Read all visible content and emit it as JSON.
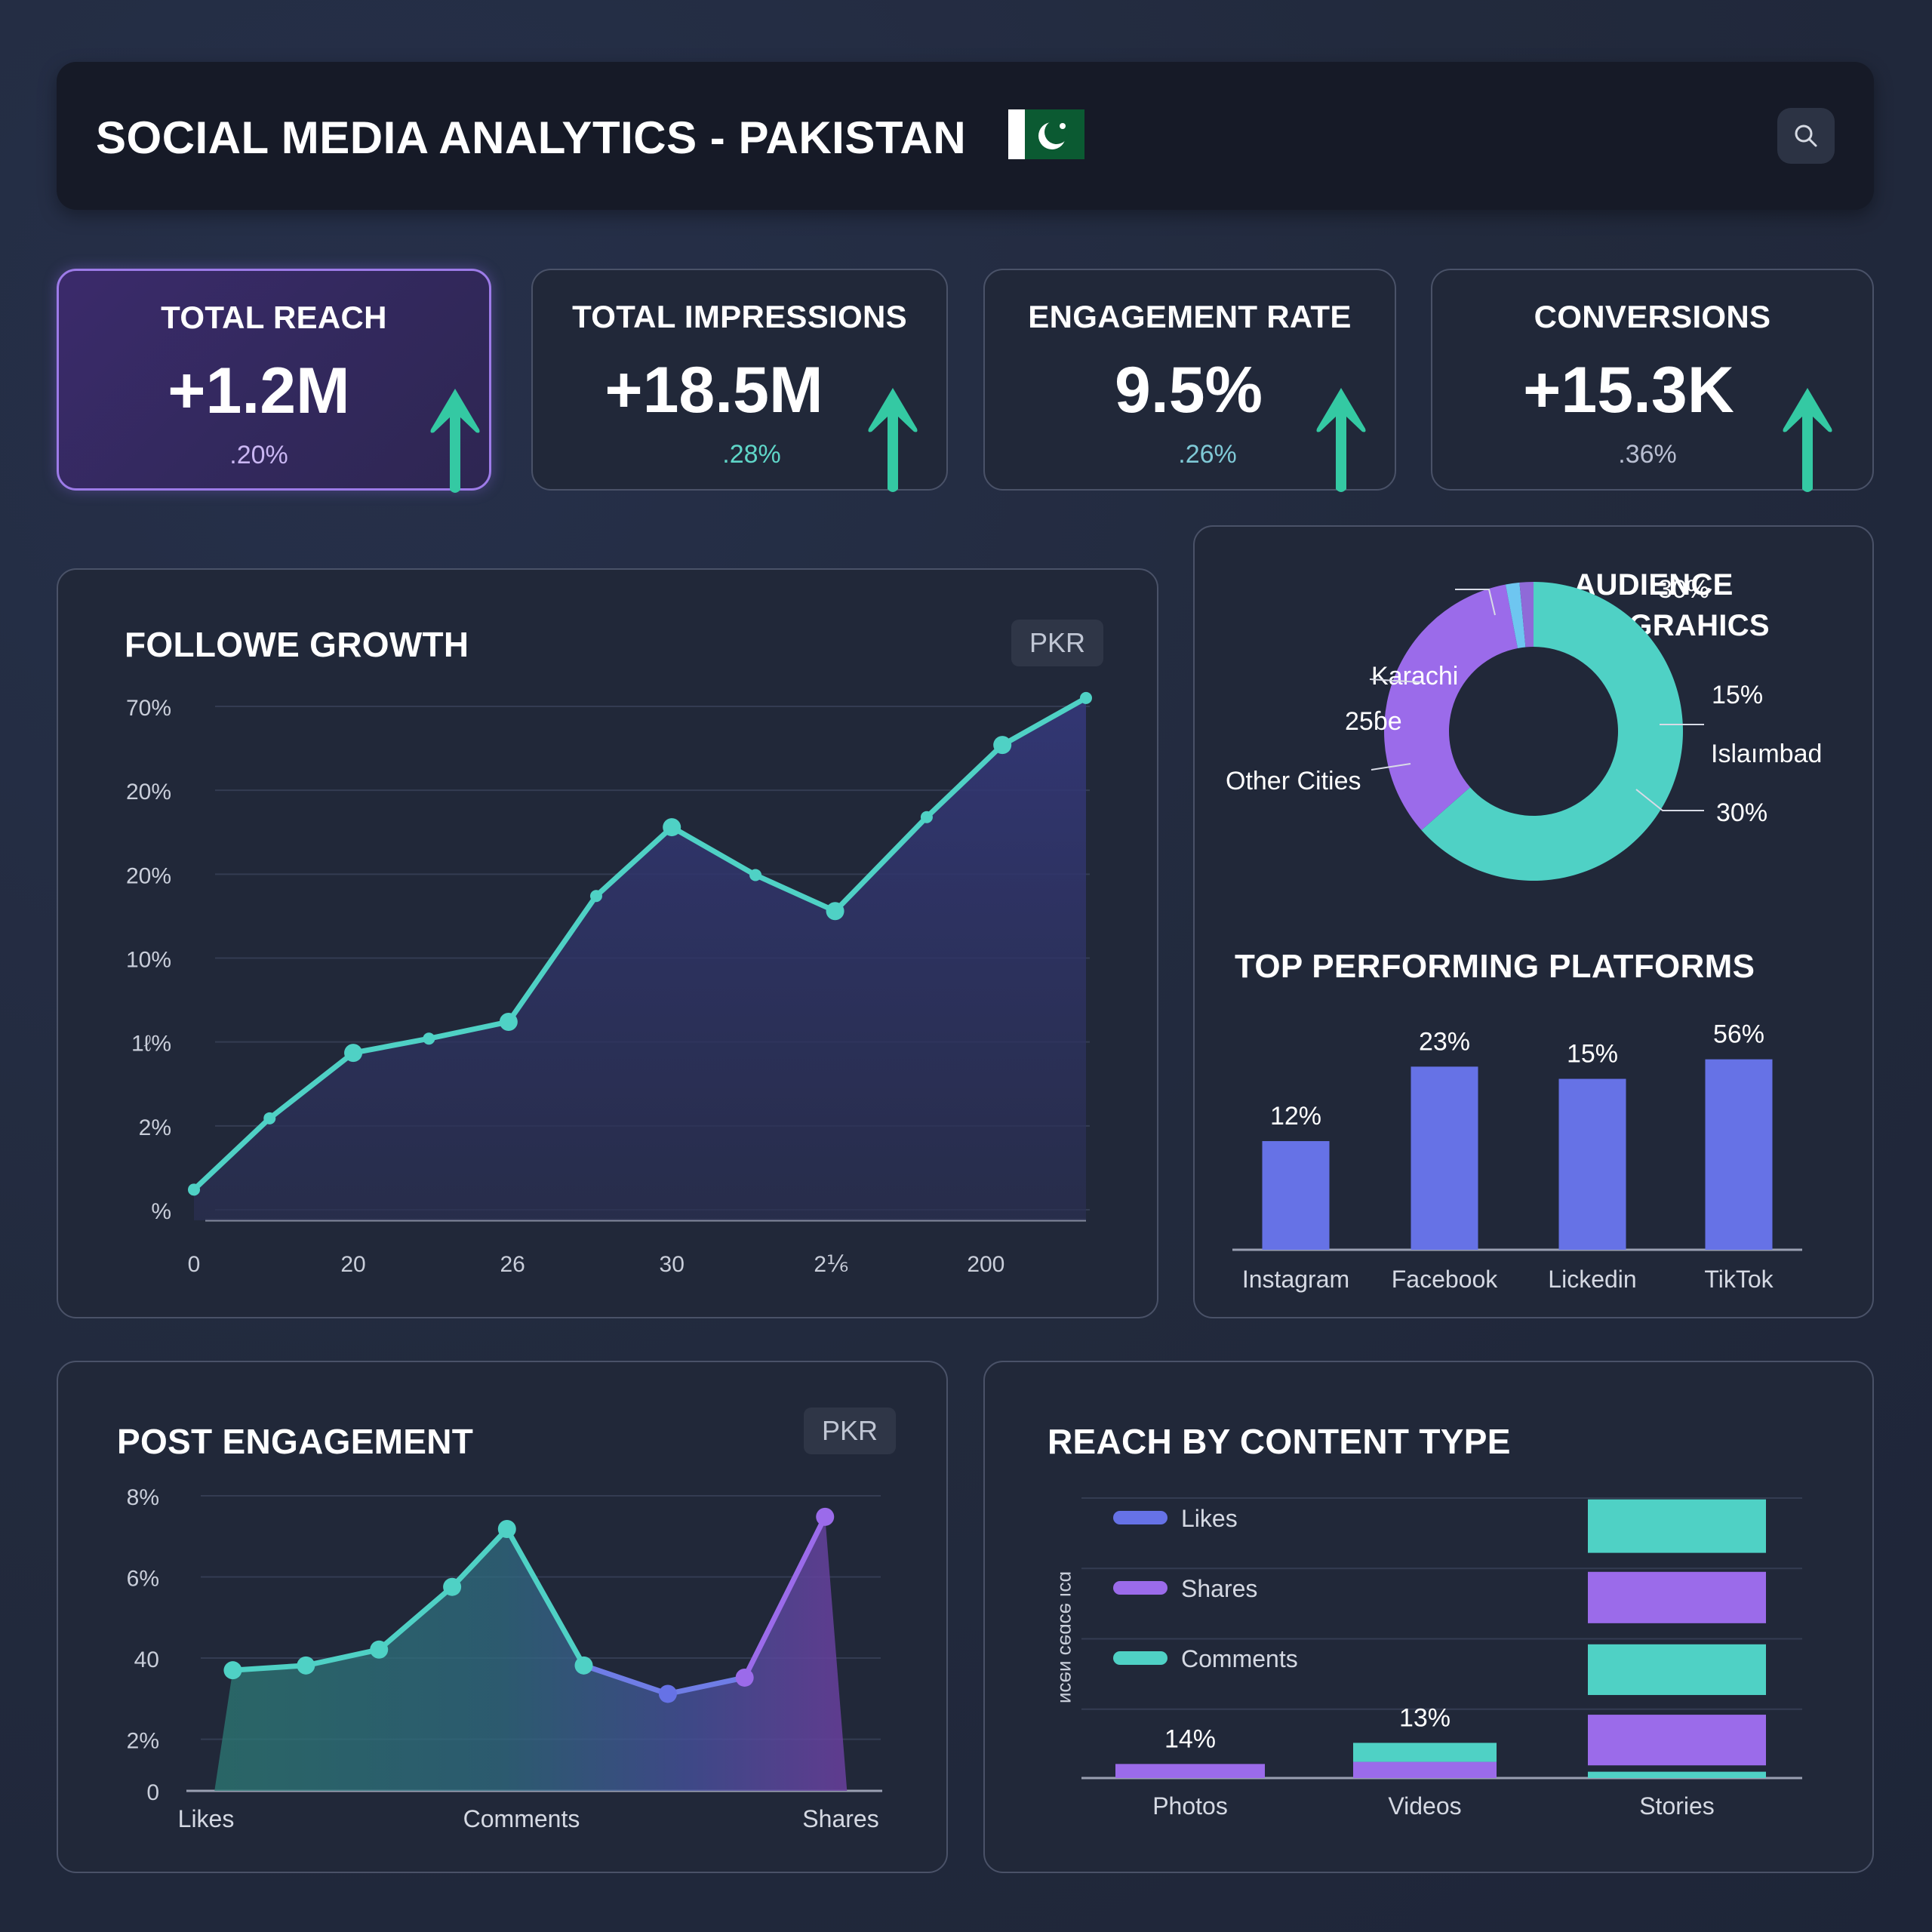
{
  "header": {
    "title": "SOCIAL MEDIA ANALYTICS - PAKISTAN",
    "flag_icon": "pakistan-flag-icon",
    "search_icon": "search-icon"
  },
  "kpis": [
    {
      "label": "TOTAL REACH",
      "value": "+1.2M",
      "delta": ".20%",
      "trend": "up",
      "delta_color": "#c9b6f2",
      "active": true
    },
    {
      "label": "TOTAL IMPRESSIONS",
      "value": "+18.5M",
      "delta": ".28%",
      "trend": "up",
      "delta_color": "#5fd6c8",
      "active": false
    },
    {
      "label": "ENGAGEMENT RATE",
      "value": "9.5%",
      "delta": ".26%",
      "trend": "up",
      "delta_color": "#7fc9d6",
      "active": false
    },
    {
      "label": "CONVERSIONS",
      "value": "+15.3K",
      "delta": ".36%",
      "trend": "up",
      "delta_color": "#b9bfd2",
      "active": false
    }
  ],
  "colors": {
    "teal": "#4fd1c5",
    "purple": "#9b6bea",
    "indigo": "#6672e6",
    "arrow_green": "#34c9a3",
    "card_bg": "#212839",
    "page_bg": "#222a3d"
  },
  "follower_growth": {
    "title": "FOLLOWE GROWTH",
    "currency_badge": "PKR"
  },
  "audience": {
    "title_line1": "AUDIENCE",
    "title_line2": "DEMOGRAHICS"
  },
  "platforms": {
    "title": "TOP PERFORMING PLATFORMS"
  },
  "post_engagement": {
    "title": "POST ENGAGEMENT",
    "currency_badge": "PKR"
  },
  "reach_content": {
    "title": "REACH BY CONTENT TYPE"
  },
  "chart_data": [
    {
      "id": "follower_growth",
      "type": "area",
      "title": "FOLLOWE GROWTH",
      "xlabel": "",
      "ylabel": "",
      "y_tick_labels": [
        "%",
        "2%",
        "1ℓ%",
        "10%",
        "20%",
        "20%",
        "70%"
      ],
      "x_tick_labels": [
        "0",
        "20",
        "26",
        "30",
        "2⅙",
        "200"
      ],
      "x_tick_positions": [
        0,
        2,
        4,
        6,
        8,
        10
      ],
      "ylim": [
        0,
        6.2
      ],
      "grid": true,
      "series": [
        {
          "name": "Followers",
          "color": "#4fd1c5",
          "x": [
            0,
            0.95,
            2,
            2.95,
            3.95,
            5.05,
            6,
            7.05,
            8.05,
            9.2,
            10.15,
            11.2
          ],
          "values": [
            0.24,
            1.09,
            1.87,
            2.04,
            2.24,
            3.74,
            4.56,
            3.99,
            3.56,
            4.68,
            5.54,
            6.1
          ],
          "large_markers": [
            2,
            4,
            6,
            8,
            10
          ]
        }
      ]
    },
    {
      "id": "audience_demographics",
      "type": "pie",
      "title": "AUDIENCE DEMOGRAHICS",
      "donut": true,
      "slices": [
        {
          "label": "Islamabad",
          "value": 63.5,
          "color": "#4fd1c5"
        },
        {
          "label": "Other Cities",
          "value": 33.5,
          "color": "#9b6bea"
        },
        {
          "label": "",
          "value": 1.5,
          "color": "#6ec6f0"
        },
        {
          "label": "",
          "value": 1.5,
          "color": "#8f6ad8"
        }
      ],
      "annotations": [
        {
          "text": "30%",
          "side": "left-top"
        },
        {
          "text": "Karachi",
          "side": "left"
        },
        {
          "text": "25ɓe",
          "side": "left"
        },
        {
          "text": "Other Cities",
          "side": "left-bottom"
        },
        {
          "text": "15%",
          "side": "right"
        },
        {
          "text": "Islaımbad",
          "side": "right"
        },
        {
          "text": "30%",
          "side": "right-bottom"
        }
      ]
    },
    {
      "id": "top_platforms",
      "type": "bar",
      "title": "TOP PERFORMING PLATFORMS",
      "categories": [
        "Instagram",
        "Facebook",
        "Lickedin",
        "TikTok"
      ],
      "value_labels": [
        "12%",
        "23%",
        "15%",
        "56%"
      ],
      "values": [
        89,
        150,
        140,
        156
      ],
      "ylim": [
        0,
        170
      ],
      "color": "#6672e6",
      "grid": false
    },
    {
      "id": "post_engagement",
      "type": "area",
      "title": "POST ENGAGEMENT",
      "y_tick_labels": [
        "0",
        "2%",
        "40",
        "6%",
        "8%"
      ],
      "y_tick_values": [
        0,
        1.4,
        3.6,
        5.8,
        8
      ],
      "x_tick_labels": [
        "Likes",
        "Comments",
        "Shares"
      ],
      "ylim": [
        0,
        8
      ],
      "grid": true,
      "series": [
        {
          "name": "Engagement",
          "x": [
            0.5,
            1.5,
            2.5,
            3.5,
            4.25,
            5.3,
            6.45,
            7.5,
            8.6
          ],
          "values": [
            3.27,
            3.4,
            3.83,
            5.53,
            7.1,
            3.4,
            2.63,
            3.07,
            7.43
          ],
          "colors": [
            "#4fd1c5",
            "#4fd1c5",
            "#4fd1c5",
            "#4fd1c5",
            "#4fd1c5",
            "#4fd1c5",
            "#6672e6",
            "#9b6bea",
            "#9b6bea"
          ]
        }
      ],
      "area_start_x": 0.25,
      "area_end_x": 8.9,
      "x_range": [
        0,
        9
      ]
    },
    {
      "id": "reach_by_content",
      "type": "bar",
      "stacked": true,
      "title": "REACH BY CONTENT TYPE",
      "ylabel": "ɒɔı ɘɔɒɘɔ ᴎɘɔᴎ",
      "categories": [
        "Photos",
        "Videos",
        "Stories"
      ],
      "value_labels": [
        "14%",
        "13%",
        ""
      ],
      "legend": [
        {
          "label": "Likes",
          "color": "#6672e6"
        },
        {
          "label": "Shares",
          "color": "#9b6bea"
        },
        {
          "label": "Comments",
          "color": "#4fd1c5"
        }
      ],
      "legend_placement": "top-left",
      "ylim": [
        0,
        4
      ],
      "grid": true,
      "stacks": [
        [
          {
            "series": "Shares",
            "from": 0,
            "to": 0.2
          }
        ],
        [
          {
            "series": "Shares",
            "from": 0,
            "to": 0.23
          },
          {
            "series": "Comments",
            "from": 0.23,
            "to": 0.5
          }
        ],
        [
          {
            "series": "Comments",
            "from": 0,
            "to": 0.09
          },
          {
            "series": "Shares",
            "from": 0.18,
            "to": 0.9
          },
          {
            "series": "Comments",
            "from": 1.18,
            "to": 1.9
          },
          {
            "series": "Shares",
            "from": 2.2,
            "to": 2.93
          },
          {
            "series": "Comments",
            "from": 3.2,
            "to": 3.96
          }
        ]
      ]
    }
  ]
}
